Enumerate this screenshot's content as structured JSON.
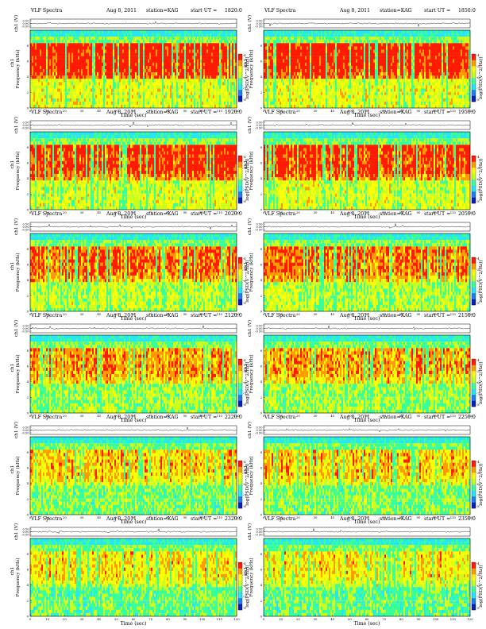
{
  "chart_data": {
    "type": "heatmap",
    "title_prefix": "VLF Spectra",
    "date": "Aug 8, 2011",
    "station": "station=KAG",
    "start_label": "start UT =",
    "xlabel": "Time (sec)",
    "ylabel_freq": "Frequency (kHz)",
    "ylabel_ch": "ch1",
    "ylabel_wave": "ch1 (V)",
    "colorbar_label": "log(PSD(V^2/Hz))",
    "xlim": [
      0,
      120
    ],
    "xticks": [
      "0",
      "10",
      "20",
      "30",
      "40",
      "50",
      "60",
      "70",
      "80",
      "90",
      "100",
      "110",
      "120"
    ],
    "ylim_freq": [
      0,
      10
    ],
    "yticks_freq": [
      "0",
      "2",
      "4",
      "6",
      "8"
    ],
    "yticks_wave": [
      "0.50",
      "0.00",
      "-0.50"
    ],
    "colorbar_ticks": [
      "-4",
      "-5",
      "-6",
      "-7",
      "-8"
    ],
    "colormap": [
      "#0a1fb8",
      "#1f7ff0",
      "#27e6f0",
      "#39ff9a",
      "#c8ff20",
      "#ffff00",
      "#ff9a00",
      "#ff1a00"
    ],
    "panels": [
      {
        "start_time": "1820:0"
      },
      {
        "start_time": "1850:0"
      },
      {
        "start_time": "1920:0"
      },
      {
        "start_time": "1950:0"
      },
      {
        "start_time": "2020:0"
      },
      {
        "start_time": "2050:0"
      },
      {
        "start_time": "2120:0"
      },
      {
        "start_time": "2150:0"
      },
      {
        "start_time": "2220:0"
      },
      {
        "start_time": "2250:0"
      },
      {
        "start_time": "2320:0"
      },
      {
        "start_time": "2350:0"
      }
    ]
  }
}
